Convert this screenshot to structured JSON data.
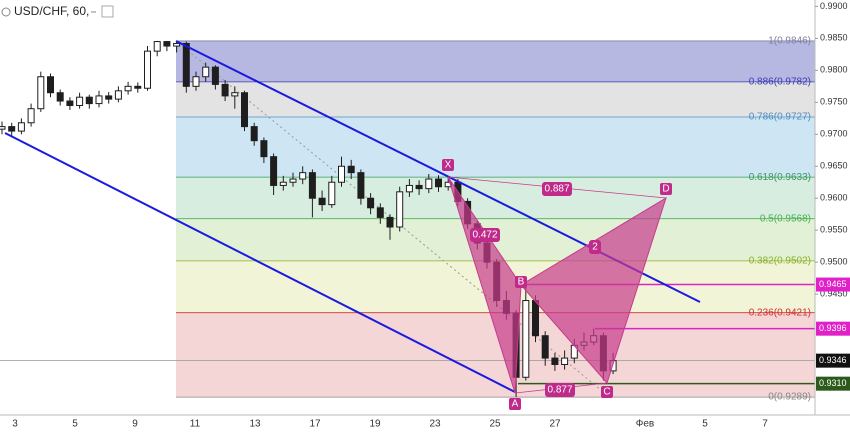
{
  "chart_data": {
    "type": "candlestick",
    "title": "USD/CHF, 60,",
    "ylim": [
      0.9261,
      0.991
    ],
    "yticks": [
      {
        "value": 0.99,
        "label": "0.9900"
      },
      {
        "value": 0.985,
        "label": "0.9850"
      },
      {
        "value": 0.98,
        "label": "0.9800"
      },
      {
        "value": 0.975,
        "label": "0.9750"
      },
      {
        "value": 0.97,
        "label": "0.9700"
      },
      {
        "value": 0.965,
        "label": "0.9650"
      },
      {
        "value": 0.96,
        "label": "0.9600"
      },
      {
        "value": 0.955,
        "label": "0.9550"
      },
      {
        "value": 0.95,
        "label": "0.9500"
      },
      {
        "value": 0.945,
        "label": "0.9450"
      }
    ],
    "categories": [
      "3",
      null,
      "5",
      null,
      "9",
      null,
      "11",
      null,
      "13",
      null,
      "17",
      null,
      "19",
      null,
      "23",
      null,
      "25",
      null,
      "27",
      null,
      null,
      "Фев",
      null,
      "5",
      null,
      "7"
    ],
    "candle_color": "#1e1e1e",
    "ohlc": [
      [
        0.9708,
        0.972,
        0.97,
        0.9712
      ],
      [
        0.9712,
        0.9718,
        0.9698,
        0.9705
      ],
      [
        0.9705,
        0.9725,
        0.97,
        0.9718
      ],
      [
        0.9718,
        0.9748,
        0.9712,
        0.974
      ],
      [
        0.974,
        0.9798,
        0.9735,
        0.979
      ],
      [
        0.979,
        0.9795,
        0.9758,
        0.9765
      ],
      [
        0.9765,
        0.977,
        0.9745,
        0.9752
      ],
      [
        0.9752,
        0.9758,
        0.9738,
        0.9745
      ],
      [
        0.9745,
        0.9765,
        0.974,
        0.9758
      ],
      [
        0.9758,
        0.9762,
        0.974,
        0.9748
      ],
      [
        0.9748,
        0.9768,
        0.9742,
        0.976
      ],
      [
        0.976,
        0.9766,
        0.9748,
        0.9755
      ],
      [
        0.9755,
        0.9775,
        0.975,
        0.9768
      ],
      [
        0.9768,
        0.9782,
        0.9762,
        0.9775
      ],
      [
        0.9775,
        0.9781,
        0.9765,
        0.9772
      ],
      [
        0.9772,
        0.9838,
        0.9768,
        0.983
      ],
      [
        0.983,
        0.9846,
        0.9822,
        0.9845
      ],
      [
        0.9845,
        0.9846,
        0.983,
        0.9838
      ],
      [
        0.9838,
        0.9846,
        0.9828,
        0.9842
      ],
      [
        0.9842,
        0.9845,
        0.9765,
        0.9775
      ],
      [
        0.9775,
        0.9798,
        0.9768,
        0.979
      ],
      [
        0.979,
        0.9812,
        0.9782,
        0.9805
      ],
      [
        0.9805,
        0.9808,
        0.977,
        0.9778
      ],
      [
        0.9778,
        0.9785,
        0.9752,
        0.976
      ],
      [
        0.976,
        0.9775,
        0.974,
        0.9765
      ],
      [
        0.9765,
        0.9768,
        0.9705,
        0.9712
      ],
      [
        0.9712,
        0.9718,
        0.9682,
        0.969
      ],
      [
        0.969,
        0.9695,
        0.9655,
        0.9665
      ],
      [
        0.9665,
        0.967,
        0.9605,
        0.962
      ],
      [
        0.962,
        0.9635,
        0.9612,
        0.9625
      ],
      [
        0.9625,
        0.964,
        0.9618,
        0.963
      ],
      [
        0.963,
        0.965,
        0.9622,
        0.964
      ],
      [
        0.964,
        0.9645,
        0.957,
        0.96
      ],
      [
        0.96,
        0.9612,
        0.958,
        0.959
      ],
      [
        0.959,
        0.9635,
        0.9585,
        0.9625
      ],
      [
        0.9625,
        0.9665,
        0.9618,
        0.965
      ],
      [
        0.965,
        0.966,
        0.963,
        0.964
      ],
      [
        0.964,
        0.9645,
        0.959,
        0.96
      ],
      [
        0.96,
        0.9608,
        0.9575,
        0.9585
      ],
      [
        0.9585,
        0.9592,
        0.956,
        0.957
      ],
      [
        0.957,
        0.9575,
        0.9535,
        0.9555
      ],
      [
        0.9555,
        0.9618,
        0.9548,
        0.961
      ],
      [
        0.961,
        0.963,
        0.9602,
        0.962
      ],
      [
        0.962,
        0.9628,
        0.9605,
        0.9615
      ],
      [
        0.9615,
        0.9638,
        0.9608,
        0.963
      ],
      [
        0.963,
        0.9636,
        0.961,
        0.9618
      ],
      [
        0.9618,
        0.9633,
        0.9612,
        0.9625
      ],
      [
        0.9625,
        0.963,
        0.9588,
        0.9595
      ],
      [
        0.9595,
        0.96,
        0.9552,
        0.956
      ],
      [
        0.956,
        0.9565,
        0.952,
        0.953
      ],
      [
        0.953,
        0.9535,
        0.949,
        0.95
      ],
      [
        0.95,
        0.9505,
        0.943,
        0.944
      ],
      [
        0.944,
        0.9455,
        0.941,
        0.942
      ],
      [
        0.942,
        0.9425,
        0.9289,
        0.932
      ],
      [
        0.932,
        0.9465,
        0.9315,
        0.944
      ],
      [
        0.944,
        0.9448,
        0.9375,
        0.9385
      ],
      [
        0.9385,
        0.9392,
        0.9338,
        0.935
      ],
      [
        0.935,
        0.9358,
        0.933,
        0.934
      ],
      [
        0.934,
        0.9362,
        0.9332,
        0.935
      ],
      [
        0.935,
        0.938,
        0.9342,
        0.937
      ],
      [
        0.937,
        0.939,
        0.9362,
        0.9375
      ],
      [
        0.9375,
        0.9396,
        0.937,
        0.9385
      ],
      [
        0.9385,
        0.939,
        0.9315,
        0.933
      ],
      [
        0.933,
        0.9358,
        0.9325,
        0.9346
      ]
    ],
    "fib_levels": [
      {
        "price": 0.9846,
        "label": "1(0.9846)",
        "color": "#7f7fa0",
        "fill": "#a9abdc"
      },
      {
        "price": 0.9782,
        "label": "0.886(0.9782)",
        "color": "#3c3cb4",
        "fill": "#dedede"
      },
      {
        "price": 0.9727,
        "label": "0.786(0.9727)",
        "color": "#4d8fc4",
        "fill": "#c6e2f2"
      },
      {
        "price": 0.9633,
        "label": "0.618(0.9633)",
        "color": "#3a9a5c",
        "fill": "#cfead9"
      },
      {
        "price": 0.9568,
        "label": "0.5(0.9568)",
        "color": "#4caf50",
        "fill": "#ddefcf"
      },
      {
        "price": 0.9502,
        "label": "0.382(0.9502)",
        "color": "#8ab02a",
        "fill": "#eef2cf"
      },
      {
        "price": 0.9421,
        "label": "0.236(0.9421)",
        "color": "#d03030",
        "fill": "#f2cfd0"
      },
      {
        "price": 0.9289,
        "label": "0(0.9289)",
        "color": "#888888"
      }
    ],
    "price_markers": [
      {
        "value": 0.9465,
        "label": "0.9465",
        "color": "#e020c8"
      },
      {
        "value": 0.9396,
        "label": "0.9396",
        "color": "#e020c8"
      },
      {
        "value": 0.9346,
        "label": "0.9346",
        "color": "#111111"
      },
      {
        "value": 0.931,
        "label": "0.9310",
        "color": "#2d5a1b"
      }
    ],
    "pattern": {
      "points": [
        "X",
        "A",
        "B",
        "C",
        "D"
      ],
      "ratios": [
        "0.472",
        "0.887",
        "0.877",
        "2"
      ]
    }
  }
}
